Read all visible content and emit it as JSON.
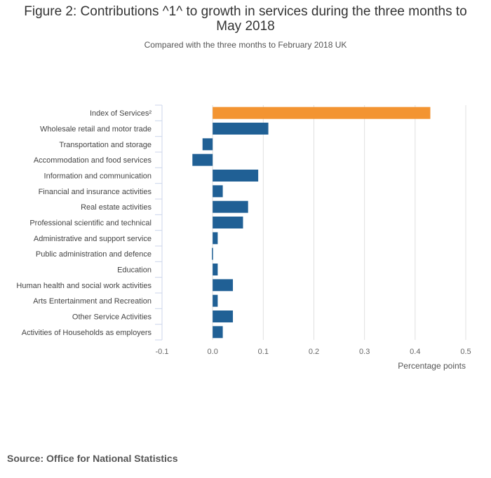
{
  "chart_data": {
    "type": "bar",
    "orientation": "horizontal",
    "title": "Figure 2: Contributions ^1^ to growth in services during the three months to May 2018",
    "subtitle": "Compared with the three months to February 2018 UK",
    "xlabel": "Percentage points",
    "ylabel": "",
    "xlim": [
      -0.1,
      0.5
    ],
    "xticks": [
      "-0.1",
      "0.0",
      "0.1",
      "0.2",
      "0.3",
      "0.4",
      "0.5"
    ],
    "grid": true,
    "categories": [
      "Index of Services²",
      "Wholesale retail and motor trade",
      "Transportation and storage",
      "Accommodation and food services",
      "Information and communication",
      "Financial and insurance activities",
      "Real estate activities",
      "Professional scientific and technical",
      "Administrative and support service",
      "Public administration and defence",
      "Education",
      "Human health and social work activities",
      "Arts Entertainment and Recreation",
      "Other Service Activities",
      "Activities of Households as employers"
    ],
    "values": [
      0.43,
      0.11,
      -0.02,
      -0.04,
      0.09,
      0.02,
      0.07,
      0.06,
      0.01,
      0.0,
      0.01,
      0.04,
      0.01,
      0.04,
      0.02
    ],
    "colors": {
      "highlight": "#f39431",
      "default": "#206095",
      "grid": "#e0e0e0",
      "axis": "#ccd6eb"
    }
  },
  "source": "Source: Office for National Statistics"
}
